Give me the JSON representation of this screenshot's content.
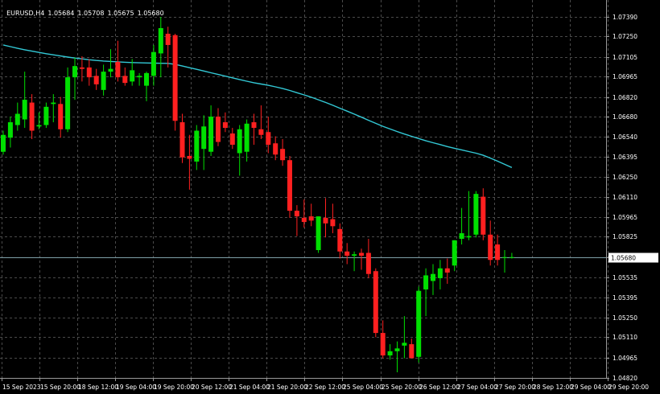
{
  "header": {
    "symbol": "EURUSD,H4",
    "open": "1.05684",
    "high": "1.05708",
    "low": "1.05675",
    "close": "1.05680"
  },
  "colors": {
    "background": "#000000",
    "grid": "#4a4a4a",
    "bull": "#00e000",
    "bear": "#ff2020",
    "ma": "#33c9d6",
    "text": "#ffffff",
    "price_line": "#7f9fa8"
  },
  "chart_data": {
    "type": "candlestick",
    "symbol": "EURUSD",
    "timeframe": "H4",
    "y_ticks": [
      "1.07390",
      "1.07250",
      "1.07105",
      "1.06965",
      "1.06820",
      "1.06680",
      "1.06540",
      "1.06395",
      "1.06250",
      "1.06110",
      "1.05965",
      "1.05825",
      "1.05680",
      "1.05535",
      "1.05395",
      "1.05250",
      "1.05110",
      "1.04965",
      "1.04820"
    ],
    "ylim": [
      1.0482,
      1.0739
    ],
    "x_ticks": [
      "15 Sep 2023",
      "15 Sep 20:00",
      "18 Sep 12:00",
      "19 Sep 04:00",
      "19 Sep 20:00",
      "20 Sep 12:00",
      "21 Sep 04:00",
      "21 Sep 20:00",
      "22 Sep 12:00",
      "25 Sep 04:00",
      "25 Sep 20:00",
      "26 Sep 12:00",
      "27 Sep 04:00",
      "27 Sep 20:00",
      "28 Sep 12:00",
      "29 Sep 04:00",
      "29 Sep 20:00"
    ],
    "current_price": "1.05680",
    "candles": [
      {
        "o": 1.0643,
        "h": 1.0658,
        "l": 1.0641,
        "c": 1.0655
      },
      {
        "o": 1.0653,
        "h": 1.0668,
        "l": 1.0646,
        "c": 1.0664
      },
      {
        "o": 1.0662,
        "h": 1.0678,
        "l": 1.0658,
        "c": 1.067
      },
      {
        "o": 1.0666,
        "h": 1.07,
        "l": 1.066,
        "c": 1.068
      },
      {
        "o": 1.0678,
        "h": 1.0684,
        "l": 1.0652,
        "c": 1.0658
      },
      {
        "o": 1.0661,
        "h": 1.0671,
        "l": 1.0659,
        "c": 1.0662
      },
      {
        "o": 1.0662,
        "h": 1.0678,
        "l": 1.066,
        "c": 1.0675
      },
      {
        "o": 1.0677,
        "h": 1.0684,
        "l": 1.0664,
        "c": 1.0678
      },
      {
        "o": 1.0677,
        "h": 1.0682,
        "l": 1.0653,
        "c": 1.0659
      },
      {
        "o": 1.0659,
        "h": 1.0703,
        "l": 1.0657,
        "c": 1.0696
      },
      {
        "o": 1.0696,
        "h": 1.071,
        "l": 1.068,
        "c": 1.0704
      },
      {
        "o": 1.0703,
        "h": 1.0711,
        "l": 1.0693,
        "c": 1.0702
      },
      {
        "o": 1.0703,
        "h": 1.0709,
        "l": 1.069,
        "c": 1.0696
      },
      {
        "o": 1.0697,
        "h": 1.0702,
        "l": 1.0687,
        "c": 1.0691
      },
      {
        "o": 1.0687,
        "h": 1.0705,
        "l": 1.0683,
        "c": 1.07
      },
      {
        "o": 1.07,
        "h": 1.0716,
        "l": 1.0696,
        "c": 1.0702
      },
      {
        "o": 1.0707,
        "h": 1.0722,
        "l": 1.0693,
        "c": 1.0696
      },
      {
        "o": 1.0697,
        "h": 1.0703,
        "l": 1.069,
        "c": 1.0692
      },
      {
        "o": 1.0693,
        "h": 1.0709,
        "l": 1.069,
        "c": 1.0701
      },
      {
        "o": 1.0696,
        "h": 1.0699,
        "l": 1.069,
        "c": 1.0697
      },
      {
        "o": 1.069,
        "h": 1.07,
        "l": 1.0679,
        "c": 1.0699
      },
      {
        "o": 1.0697,
        "h": 1.0719,
        "l": 1.069,
        "c": 1.0714
      },
      {
        "o": 1.0713,
        "h": 1.0739,
        "l": 1.0696,
        "c": 1.0731
      },
      {
        "o": 1.0727,
        "h": 1.0732,
        "l": 1.0703,
        "c": 1.0719
      },
      {
        "o": 1.0726,
        "h": 1.0727,
        "l": 1.0658,
        "c": 1.0665
      },
      {
        "o": 1.0664,
        "h": 1.067,
        "l": 1.0635,
        "c": 1.0639
      },
      {
        "o": 1.064,
        "h": 1.0655,
        "l": 1.0616,
        "c": 1.0638
      },
      {
        "o": 1.0636,
        "h": 1.0662,
        "l": 1.063,
        "c": 1.0658
      },
      {
        "o": 1.0645,
        "h": 1.0669,
        "l": 1.063,
        "c": 1.0661
      },
      {
        "o": 1.0643,
        "h": 1.0676,
        "l": 1.064,
        "c": 1.0668
      },
      {
        "o": 1.0668,
        "h": 1.0674,
        "l": 1.0647,
        "c": 1.065
      },
      {
        "o": 1.0664,
        "h": 1.0671,
        "l": 1.0657,
        "c": 1.066
      },
      {
        "o": 1.0656,
        "h": 1.066,
        "l": 1.0645,
        "c": 1.0648
      },
      {
        "o": 1.0642,
        "h": 1.0662,
        "l": 1.0626,
        "c": 1.0659
      },
      {
        "o": 1.0643,
        "h": 1.0666,
        "l": 1.0636,
        "c": 1.0663
      },
      {
        "o": 1.0664,
        "h": 1.067,
        "l": 1.0648,
        "c": 1.066
      },
      {
        "o": 1.0659,
        "h": 1.0676,
        "l": 1.0652,
        "c": 1.0655
      },
      {
        "o": 1.0657,
        "h": 1.0668,
        "l": 1.0642,
        "c": 1.0648
      },
      {
        "o": 1.0649,
        "h": 1.0654,
        "l": 1.0637,
        "c": 1.0641
      },
      {
        "o": 1.0645,
        "h": 1.0652,
        "l": 1.0633,
        "c": 1.0637
      },
      {
        "o": 1.0637,
        "h": 1.064,
        "l": 1.0596,
        "c": 1.0601
      },
      {
        "o": 1.0601,
        "h": 1.0605,
        "l": 1.0583,
        "c": 1.0597
      },
      {
        "o": 1.0596,
        "h": 1.0609,
        "l": 1.0589,
        "c": 1.0593
      },
      {
        "o": 1.0597,
        "h": 1.0606,
        "l": 1.059,
        "c": 1.0594
      },
      {
        "o": 1.0573,
        "h": 1.0597,
        "l": 1.0571,
        "c": 1.0597
      },
      {
        "o": 1.0596,
        "h": 1.061,
        "l": 1.0582,
        "c": 1.0592
      },
      {
        "o": 1.0595,
        "h": 1.0606,
        "l": 1.0585,
        "c": 1.059
      },
      {
        "o": 1.0588,
        "h": 1.0592,
        "l": 1.0567,
        "c": 1.0572
      },
      {
        "o": 1.0572,
        "h": 1.0578,
        "l": 1.0563,
        "c": 1.0569
      },
      {
        "o": 1.0569,
        "h": 1.0572,
        "l": 1.0558,
        "c": 1.057
      },
      {
        "o": 1.0571,
        "h": 1.0574,
        "l": 1.0559,
        "c": 1.0569
      },
      {
        "o": 1.0571,
        "h": 1.0581,
        "l": 1.0553,
        "c": 1.0556
      },
      {
        "o": 1.0558,
        "h": 1.056,
        "l": 1.0511,
        "c": 1.0514
      },
      {
        "o": 1.0514,
        "h": 1.0523,
        "l": 1.0496,
        "c": 1.0498
      },
      {
        "o": 1.0498,
        "h": 1.0506,
        "l": 1.0495,
        "c": 1.0501
      },
      {
        "o": 1.0501,
        "h": 1.0508,
        "l": 1.0486,
        "c": 1.0503
      },
      {
        "o": 1.0505,
        "h": 1.0526,
        "l": 1.0496,
        "c": 1.0507
      },
      {
        "o": 1.0506,
        "h": 1.051,
        "l": 1.0496,
        "c": 1.0496
      },
      {
        "o": 1.0497,
        "h": 1.0547,
        "l": 1.0493,
        "c": 1.0544
      },
      {
        "o": 1.0545,
        "h": 1.056,
        "l": 1.0526,
        "c": 1.0555
      },
      {
        "o": 1.0551,
        "h": 1.0563,
        "l": 1.0541,
        "c": 1.0556
      },
      {
        "o": 1.0553,
        "h": 1.0566,
        "l": 1.0545,
        "c": 1.056
      },
      {
        "o": 1.056,
        "h": 1.0567,
        "l": 1.0549,
        "c": 1.0557
      },
      {
        "o": 1.0562,
        "h": 1.058,
        "l": 1.0558,
        "c": 1.058
      },
      {
        "o": 1.0581,
        "h": 1.0603,
        "l": 1.0577,
        "c": 1.0585
      },
      {
        "o": 1.0582,
        "h": 1.0615,
        "l": 1.058,
        "c": 1.0583
      },
      {
        "o": 1.0584,
        "h": 1.0615,
        "l": 1.0582,
        "c": 1.0613
      },
      {
        "o": 1.0611,
        "h": 1.0617,
        "l": 1.058,
        "c": 1.0584
      },
      {
        "o": 1.0584,
        "h": 1.0594,
        "l": 1.0562,
        "c": 1.0566
      },
      {
        "o": 1.0577,
        "h": 1.0584,
        "l": 1.0562,
        "c": 1.0566
      },
      {
        "o": 1.0568,
        "h": 1.0573,
        "l": 1.0557,
        "c": 1.0568
      },
      {
        "o": 1.0568,
        "h": 1.0571,
        "l": 1.0567,
        "c": 1.0568
      }
    ],
    "ma": [
      1.0719,
      1.07178,
      1.07166,
      1.07156,
      1.07146,
      1.07137,
      1.07128,
      1.0712,
      1.07112,
      1.07104,
      1.07097,
      1.07091,
      1.07085,
      1.0708,
      1.07076,
      1.07073,
      1.0707,
      1.07067,
      1.07065,
      1.07063,
      1.07062,
      1.07061,
      1.0706,
      1.07059,
      1.07052,
      1.0704,
      1.07028,
      1.07017,
      1.07005,
      1.06992,
      1.0698,
      1.06968,
      1.06956,
      1.06944,
      1.06932,
      1.06921,
      1.06912,
      1.06903,
      1.06892,
      1.0688,
      1.06866,
      1.0685,
      1.06835,
      1.06818,
      1.068,
      1.06781,
      1.06761,
      1.0674,
      1.06719,
      1.06698,
      1.06676,
      1.06654,
      1.06632,
      1.06611,
      1.06592,
      1.06574,
      1.06556,
      1.0654,
      1.06524,
      1.06508,
      1.06494,
      1.06481,
      1.06467,
      1.06455,
      1.06443,
      1.06431,
      1.0642,
      1.06405,
      1.06385,
      1.06363,
      1.0634,
      1.06318
    ]
  }
}
